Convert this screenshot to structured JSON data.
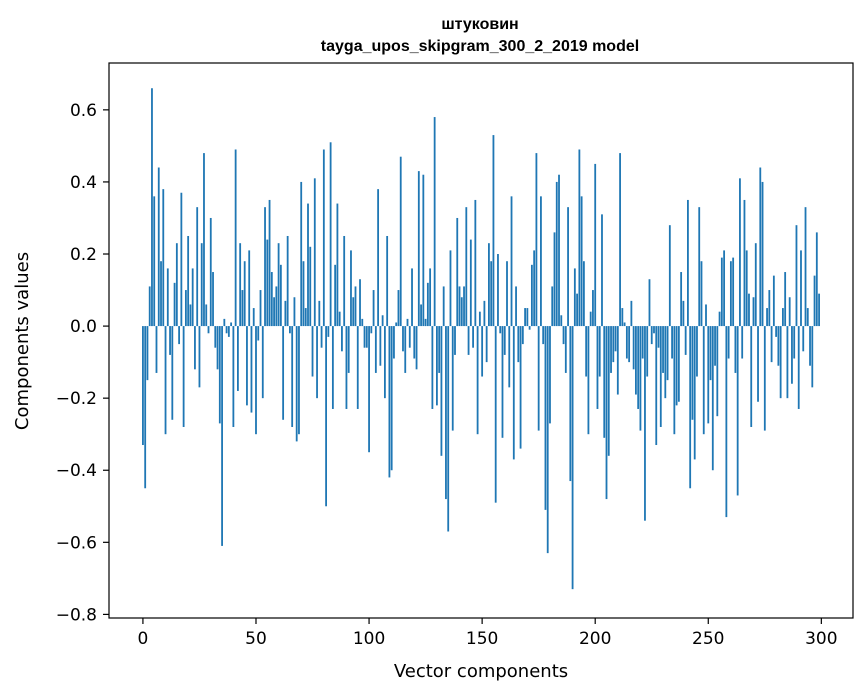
{
  "chart_data": {
    "type": "bar",
    "title": "штуковин",
    "subtitle": "tayga_upos_skipgram_300_2_2019 model",
    "xlabel": "Vector components",
    "ylabel": "Components values",
    "xlim": [
      -15,
      314
    ],
    "ylim": [
      -0.81,
      0.73
    ],
    "xticks": [
      0,
      50,
      100,
      150,
      200,
      250,
      300
    ],
    "yticks": [
      -0.8,
      -0.6,
      -0.4,
      -0.2,
      0.0,
      0.2,
      0.4,
      0.6
    ],
    "ytick_labels": [
      "−0.8",
      "−0.6",
      "−0.4",
      "−0.2",
      "0.0",
      "0.2",
      "0.4",
      "0.6"
    ],
    "bar_color": "#1f77b4",
    "values": [
      -0.33,
      -0.45,
      -0.15,
      0.11,
      0.66,
      0.36,
      -0.13,
      0.44,
      0.18,
      0.38,
      -0.3,
      0.16,
      -0.08,
      -0.26,
      0.12,
      0.23,
      -0.05,
      0.37,
      -0.28,
      0.1,
      0.25,
      0.06,
      0.16,
      -0.12,
      0.33,
      -0.17,
      0.23,
      0.48,
      0.06,
      -0.02,
      0.3,
      0.15,
      -0.06,
      -0.12,
      -0.27,
      -0.61,
      0.02,
      -0.02,
      -0.03,
      0.01,
      -0.28,
      0.49,
      -0.18,
      0.23,
      0.1,
      0.18,
      -0.22,
      0.21,
      -0.24,
      0.05,
      -0.3,
      -0.04,
      0.1,
      -0.2,
      0.33,
      0.24,
      0.35,
      0.15,
      0.08,
      0.11,
      0.23,
      0.17,
      -0.26,
      0.07,
      0.25,
      -0.02,
      -0.28,
      0.08,
      -0.32,
      -0.3,
      0.4,
      0.18,
      0.05,
      0.34,
      0.22,
      -0.14,
      0.41,
      -0.2,
      0.07,
      -0.06,
      0.49,
      -0.5,
      -0.03,
      0.51,
      -0.23,
      0.17,
      0.34,
      0.04,
      -0.07,
      0.25,
      -0.23,
      -0.13,
      0.21,
      0.08,
      0.11,
      -0.23,
      0.13,
      0.02,
      -0.06,
      -0.06,
      -0.35,
      -0.02,
      0.1,
      -0.13,
      0.38,
      -0.11,
      0.03,
      -0.2,
      0.25,
      -0.42,
      -0.4,
      -0.09,
      0.01,
      0.1,
      0.47,
      -0.07,
      -0.13,
      0.02,
      -0.06,
      0.16,
      -0.09,
      -0.12,
      0.43,
      0.06,
      0.42,
      0.02,
      0.12,
      0.16,
      -0.23,
      0.58,
      -0.22,
      -0.13,
      -0.36,
      0.11,
      -0.48,
      -0.57,
      0.21,
      -0.29,
      -0.08,
      0.3,
      0.11,
      0.08,
      0.11,
      0.33,
      -0.08,
      0.24,
      -0.06,
      0.35,
      -0.3,
      0.04,
      -0.14,
      0.07,
      -0.1,
      0.23,
      0.18,
      0.53,
      -0.49,
      0.2,
      -0.02,
      -0.31,
      -0.08,
      0.18,
      -0.17,
      0.36,
      -0.37,
      0.11,
      -0.1,
      -0.34,
      -0.05,
      0.05,
      0.05,
      -0.01,
      0.17,
      0.21,
      0.48,
      -0.29,
      0.36,
      -0.05,
      -0.51,
      -0.63,
      -0.27,
      0.11,
      0.26,
      0.4,
      0.42,
      0.03,
      -0.05,
      -0.13,
      0.33,
      -0.43,
      -0.73,
      0.16,
      0.09,
      0.49,
      0.36,
      0.18,
      -0.14,
      -0.3,
      0.04,
      0.1,
      0.45,
      -0.23,
      -0.14,
      0.31,
      -0.31,
      -0.48,
      -0.36,
      -0.13,
      -0.1,
      -0.07,
      -0.19,
      0.48,
      0.05,
      0.01,
      -0.09,
      -0.1,
      0.07,
      -0.12,
      -0.19,
      -0.23,
      -0.29,
      -0.09,
      -0.54,
      -0.14,
      0.13,
      -0.05,
      -0.02,
      -0.33,
      -0.06,
      -0.28,
      -0.13,
      -0.2,
      -0.15,
      0.28,
      -0.09,
      -0.3,
      -0.22,
      -0.21,
      0.15,
      0.07,
      -0.08,
      0.35,
      -0.45,
      -0.26,
      -0.37,
      -0.14,
      0.33,
      0.18,
      -0.3,
      0.06,
      -0.27,
      -0.15,
      -0.4,
      -0.11,
      -0.25,
      0.04,
      0.19,
      0.21,
      -0.53,
      -0.09,
      0.18,
      0.19,
      -0.13,
      -0.47,
      0.41,
      -0.09,
      0.35,
      0.21,
      0.09,
      -0.28,
      0.08,
      0.23,
      -0.21,
      0.44,
      0.4,
      -0.29,
      0.05,
      0.1,
      -0.1,
      0.14,
      -0.03,
      -0.11,
      -0.2,
      0.05,
      0.15,
      -0.2,
      0.08,
      -0.16,
      -0.09,
      0.28,
      -0.23,
      0.21,
      -0.07,
      0.33,
      0.05,
      -0.11,
      -0.17,
      0.14,
      0.26,
      0.09
    ]
  }
}
